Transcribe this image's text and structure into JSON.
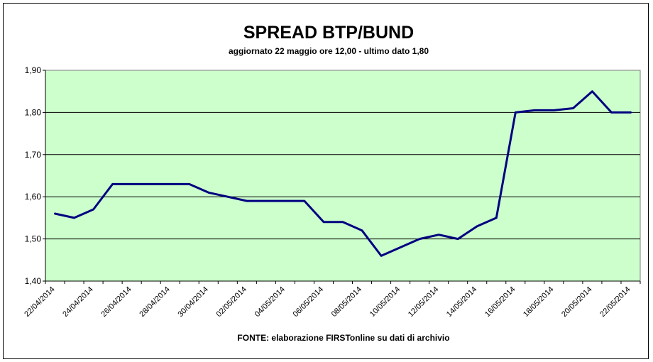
{
  "chart_data": {
    "type": "line",
    "title": "SPREAD BTP/BUND",
    "subtitle": "aggiornato 22 maggio ore 12,00 - ultimo dato 1,80",
    "source_note": "FONTE: elaborazione FIRSTonline su dati di archivio",
    "xlabel": "",
    "ylabel": "",
    "ylim": [
      1.4,
      1.9
    ],
    "y_ticks": [
      "1,40",
      "1,50",
      "1,60",
      "1,70",
      "1,80",
      "1,90"
    ],
    "x_tick_labels": [
      "22/04/2014",
      "24/04/2014",
      "26/04/2014",
      "28/04/2014",
      "30/04/2014",
      "02/05/2014",
      "04/05/2014",
      "06/05/2014",
      "08/05/2014",
      "10/05/2014",
      "12/05/2014",
      "14/05/2014",
      "16/05/2014",
      "18/05/2014",
      "20/05/2014",
      "22/05/2014"
    ],
    "grid": true,
    "legend": "none",
    "colors": {
      "plot_background": "#ccffcc",
      "line": "#000080",
      "gridline": "#000000"
    },
    "series": [
      {
        "x": [
          "22/04/2014",
          "23/04/2014",
          "24/04/2014",
          "25/04/2014",
          "26/04/2014",
          "27/04/2014",
          "28/04/2014",
          "29/04/2014",
          "30/04/2014",
          "01/05/2014",
          "02/05/2014",
          "03/05/2014",
          "04/05/2014",
          "05/05/2014",
          "06/05/2014",
          "07/05/2014",
          "08/05/2014",
          "09/05/2014",
          "10/05/2014",
          "11/05/2014",
          "12/05/2014",
          "13/05/2014",
          "14/05/2014",
          "15/05/2014",
          "16/05/2014",
          "17/05/2014",
          "18/05/2014",
          "19/05/2014",
          "20/05/2014",
          "21/05/2014",
          "22/05/2014"
        ],
        "values": [
          1.56,
          1.55,
          1.57,
          1.63,
          1.63,
          1.63,
          1.63,
          1.63,
          1.61,
          1.6,
          1.59,
          1.59,
          1.59,
          1.59,
          1.54,
          1.54,
          1.52,
          1.46,
          1.48,
          1.5,
          1.51,
          1.5,
          1.53,
          1.55,
          1.8,
          1.805,
          1.805,
          1.81,
          1.85,
          1.8,
          1.8
        ]
      }
    ]
  }
}
